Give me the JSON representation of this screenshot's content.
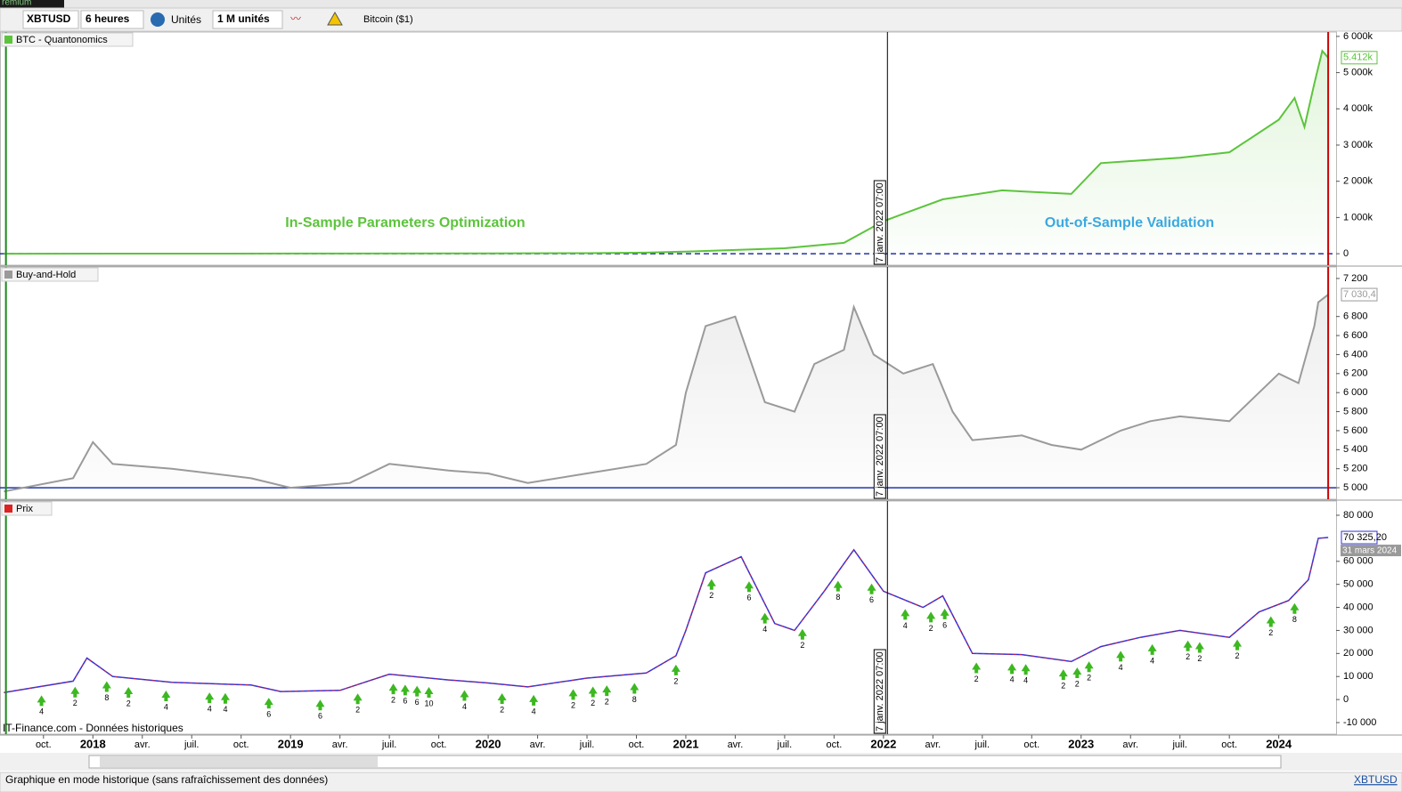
{
  "app": {
    "menu_fragment": "remium",
    "symbol": "XBTUSD",
    "period": "6 heures",
    "units": "Unités",
    "quantity": "1 M unités",
    "instrument": "Bitcoin ($1)"
  },
  "annotations": {
    "in_sample": "In-Sample Parameters Optimization",
    "out_of_sample": "Out-of-Sample Validation"
  },
  "x_axis": {
    "xlim": [
      2017.53,
      2024.29
    ],
    "xticks": [
      {
        "value": 2017.75,
        "label": "oct."
      },
      2018,
      {
        "value": 2018.25,
        "label": "avr."
      },
      {
        "value": 2018.5,
        "label": "juil."
      },
      {
        "value": 2018.75,
        "label": "oct."
      },
      2019,
      {
        "value": 2019.25,
        "label": "avr."
      },
      {
        "value": 2019.5,
        "label": "juil."
      },
      {
        "value": 2019.75,
        "label": "oct."
      },
      2020,
      {
        "value": 2020.25,
        "label": "avr."
      },
      {
        "value": 2020.5,
        "label": "juil."
      },
      {
        "value": 2020.75,
        "label": "oct."
      },
      2021,
      {
        "value": 2021.25,
        "label": "avr."
      },
      {
        "value": 2021.5,
        "label": "juil."
      },
      {
        "value": 2021.75,
        "label": "oct."
      },
      2022,
      {
        "value": 2022.25,
        "label": "avr."
      },
      {
        "value": 2022.5,
        "label": "juil."
      },
      {
        "value": 2022.75,
        "label": "oct."
      },
      2023,
      {
        "value": 2023.25,
        "label": "avr."
      },
      {
        "value": 2023.5,
        "label": "juil."
      },
      {
        "value": 2023.75,
        "label": "oct."
      },
      2024
    ],
    "split_x": 2022.02,
    "split_label": "7 janv. 2022 07:00",
    "start_x": 2017.56,
    "end_x": 2024.25
  },
  "chart_data": [
    {
      "type": "area",
      "title": "BTC - Quantonomics",
      "color": "#5cc43c",
      "current_label": "5.412k",
      "baseline": 0,
      "baseline_style": "dashed",
      "x": [
        2017.55,
        2019.0,
        2020.0,
        2020.5,
        2020.8,
        2021.0,
        2021.5,
        2021.8,
        2022.0,
        2022.05,
        2022.3,
        2022.6,
        2022.95,
        2023.1,
        2023.5,
        2023.75,
        2024.0,
        2024.08,
        2024.13,
        2024.18,
        2024.22,
        2024.25
      ],
      "values": [
        0,
        5000,
        10000,
        15000,
        30000,
        60000,
        150000,
        300000,
        900000,
        1000000,
        1500000,
        1750000,
        1650000,
        2500000,
        2650000,
        2800000,
        3700000,
        4300000,
        3500000,
        4700000,
        5600000,
        5412000
      ],
      "ylim": [
        -317000,
        6120000
      ],
      "yticks": [
        0,
        {
          "value": 1000000,
          "label": "1 000k"
        },
        {
          "value": 2000000,
          "label": "2 000k"
        },
        {
          "value": 3000000,
          "label": "3 000k"
        },
        {
          "value": 4000000,
          "label": "4 000k"
        },
        {
          "value": 5000000,
          "label": "5 000k"
        },
        {
          "value": 6000000,
          "label": "6 000k"
        }
      ]
    },
    {
      "type": "area",
      "title": "Buy-and-Hold",
      "color": "#9a9a9a",
      "current_label": "7 030,4",
      "baseline": 5000,
      "baseline_style": "solid",
      "x": [
        2017.55,
        2017.9,
        2018.0,
        2018.1,
        2018.4,
        2018.8,
        2019.0,
        2019.3,
        2019.5,
        2019.8,
        2020.0,
        2020.2,
        2020.5,
        2020.8,
        2020.95,
        2021.0,
        2021.1,
        2021.25,
        2021.4,
        2021.55,
        2021.65,
        2021.8,
        2021.85,
        2021.95,
        2022.1,
        2022.25,
        2022.35,
        2022.45,
        2022.7,
        2022.85,
        2023.0,
        2023.2,
        2023.35,
        2023.5,
        2023.75,
        2023.9,
        2024.0,
        2024.1,
        2024.18,
        2024.2,
        2024.25
      ],
      "values": [
        4960,
        5100,
        5480,
        5250,
        5200,
        5100,
        5000,
        5050,
        5250,
        5180,
        5150,
        5050,
        5150,
        5250,
        5450,
        6000,
        6700,
        6800,
        5900,
        5800,
        6300,
        6450,
        6900,
        6400,
        6200,
        6300,
        5800,
        5500,
        5550,
        5450,
        5400,
        5600,
        5700,
        5750,
        5700,
        6000,
        6200,
        6100,
        6700,
        6950,
        7030.4
      ],
      "ylim": [
        4879,
        7321
      ],
      "yticks": [
        {
          "value": 5000,
          "label": "5 000"
        },
        {
          "value": 5200,
          "label": "5 200"
        },
        {
          "value": 5400,
          "label": "5 400"
        },
        {
          "value": 5600,
          "label": "5 600"
        },
        {
          "value": 5800,
          "label": "5 800"
        },
        {
          "value": 6000,
          "label": "6 000"
        },
        {
          "value": 6200,
          "label": "6 200"
        },
        {
          "value": 6400,
          "label": "6 400"
        },
        {
          "value": 6600,
          "label": "6 600"
        },
        {
          "value": 6800,
          "label": "6 800"
        },
        {
          "value": 7200,
          "label": "7 200"
        }
      ]
    },
    {
      "type": "line",
      "title": "Prix",
      "color": "#3030e0",
      "current_label": "70 325,20",
      "current_date_label": "31 mars 2024",
      "source": "IT-Finance.com - Données historiques",
      "x": [
        2017.55,
        2017.9,
        2017.97,
        2018.1,
        2018.4,
        2018.8,
        2018.95,
        2019.25,
        2019.5,
        2019.8,
        2020.0,
        2020.2,
        2020.5,
        2020.8,
        2020.95,
        2021.0,
        2021.1,
        2021.28,
        2021.45,
        2021.55,
        2021.7,
        2021.85,
        2022.0,
        2022.2,
        2022.3,
        2022.45,
        2022.7,
        2022.95,
        2023.1,
        2023.3,
        2023.5,
        2023.75,
        2023.9,
        2024.05,
        2024.15,
        2024.2,
        2024.25
      ],
      "values": [
        3000,
        8000,
        18000,
        10000,
        7500,
        6300,
        3500,
        4000,
        11000,
        8500,
        7200,
        5500,
        9300,
        11500,
        19000,
        30000,
        55000,
        62000,
        33000,
        30000,
        47000,
        65000,
        47000,
        40000,
        45000,
        20000,
        19500,
        16500,
        23000,
        27000,
        30000,
        27000,
        38000,
        43000,
        52000,
        70000,
        70325.2
      ],
      "ylim": [
        -15020,
        86180
      ],
      "yticks": [
        {
          "value": -10000,
          "label": "-10 000"
        },
        0,
        {
          "value": 10000,
          "label": "10 000"
        },
        {
          "value": 20000,
          "label": "20 000"
        },
        {
          "value": 30000,
          "label": "30 000"
        },
        {
          "value": 40000,
          "label": "40 000"
        },
        {
          "value": 50000,
          "label": "50 000"
        },
        {
          "value": 60000,
          "label": "60 000"
        },
        {
          "value": 80000,
          "label": "80 000"
        }
      ],
      "signals": [
        {
          "x": 2017.74,
          "label": "4"
        },
        {
          "x": 2017.91,
          "label": "2"
        },
        {
          "x": 2018.07,
          "label": "8"
        },
        {
          "x": 2018.18,
          "label": "2"
        },
        {
          "x": 2018.37,
          "label": "4"
        },
        {
          "x": 2018.59,
          "label": "4"
        },
        {
          "x": 2018.67,
          "label": "4"
        },
        {
          "x": 2018.89,
          "label": "6"
        },
        {
          "x": 2019.15,
          "label": "6"
        },
        {
          "x": 2019.34,
          "label": "2"
        },
        {
          "x": 2019.52,
          "label": "2"
        },
        {
          "x": 2019.58,
          "label": "6"
        },
        {
          "x": 2019.64,
          "label": "6"
        },
        {
          "x": 2019.7,
          "label": "10"
        },
        {
          "x": 2019.88,
          "label": "4"
        },
        {
          "x": 2020.07,
          "label": "2"
        },
        {
          "x": 2020.23,
          "label": "4"
        },
        {
          "x": 2020.43,
          "label": "2"
        },
        {
          "x": 2020.53,
          "label": "2"
        },
        {
          "x": 2020.6,
          "label": "2"
        },
        {
          "x": 2020.74,
          "label": "8"
        },
        {
          "x": 2020.95,
          "label": "2"
        },
        {
          "x": 2021.13,
          "label": "2"
        },
        {
          "x": 2021.32,
          "label": "6"
        },
        {
          "x": 2021.4,
          "label": "4"
        },
        {
          "x": 2021.59,
          "label": "2"
        },
        {
          "x": 2021.77,
          "label": "8"
        },
        {
          "x": 2021.94,
          "label": "6"
        },
        {
          "x": 2022.11,
          "label": "4"
        },
        {
          "x": 2022.24,
          "label": "2"
        },
        {
          "x": 2022.31,
          "label": "6"
        },
        {
          "x": 2022.47,
          "label": "2"
        },
        {
          "x": 2022.65,
          "label": "4"
        },
        {
          "x": 2022.72,
          "label": "4"
        },
        {
          "x": 2022.91,
          "label": "2"
        },
        {
          "x": 2022.98,
          "label": "2"
        },
        {
          "x": 2023.04,
          "label": "2"
        },
        {
          "x": 2023.2,
          "label": "4"
        },
        {
          "x": 2023.36,
          "label": "4"
        },
        {
          "x": 2023.54,
          "label": "2"
        },
        {
          "x": 2023.6,
          "label": "2"
        },
        {
          "x": 2023.79,
          "label": "2"
        },
        {
          "x": 2023.96,
          "label": "2"
        },
        {
          "x": 2024.08,
          "label": "8"
        }
      ]
    }
  ],
  "status": {
    "message": "Graphique en mode historique (sans rafraîchissement des données)",
    "symbol": "XBTUSD"
  }
}
